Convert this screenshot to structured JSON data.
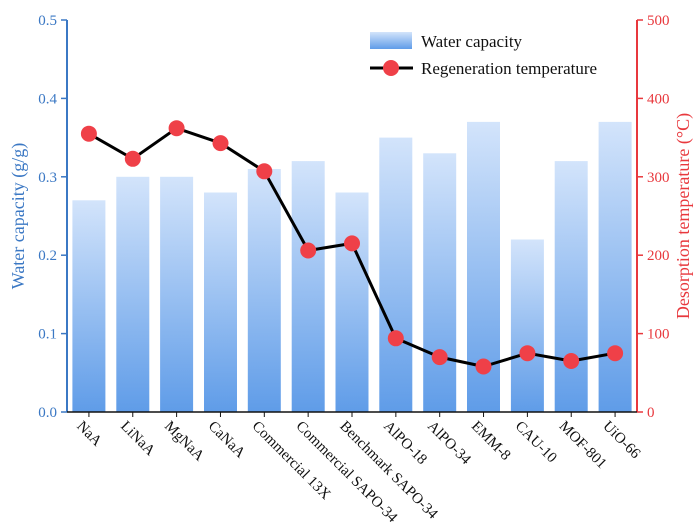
{
  "chart_data": {
    "type": "bar+line",
    "categories": [
      "NaA",
      "LiNaA",
      "MgNaA",
      "CaNaA",
      "Commercial 13X",
      "Commercial SAPO-34",
      "Benchmark SAPO-34",
      "AlPO-18",
      "AlPO-34",
      "EMM-8",
      "CAU-10",
      "MOF-801",
      "UiO-66"
    ],
    "series": [
      {
        "name": "Water capacity",
        "type": "bar",
        "axis": "left",
        "values": [
          0.27,
          0.3,
          0.3,
          0.28,
          0.31,
          0.32,
          0.28,
          0.35,
          0.33,
          0.37,
          0.22,
          0.32,
          0.37
        ]
      },
      {
        "name": "Regeneration temperature",
        "type": "line",
        "axis": "right",
        "values": [
          355,
          323,
          362,
          343,
          307,
          206,
          215,
          94,
          70,
          58,
          75,
          65,
          75
        ]
      }
    ],
    "ylabel_left": "Water capacity (g/g)",
    "ylabel_right": "Desorption temperature (°C)",
    "ylim_left": [
      0.0,
      0.5
    ],
    "ylim_right": [
      0,
      500
    ],
    "yticks_left": [
      "0.0",
      "0.1",
      "0.2",
      "0.3",
      "0.4",
      "0.5"
    ],
    "yticks_right": [
      "0",
      "100",
      "200",
      "300",
      "400",
      "500"
    ],
    "legend_position": "top-right",
    "grid": false,
    "colors": {
      "left_axis": "#3b78c4",
      "right_axis": "#e8383d",
      "bar_top": "#d3e4fb",
      "bar_bottom": "#5f9ce8",
      "line": "#000000",
      "marker": "#ef4048"
    }
  }
}
